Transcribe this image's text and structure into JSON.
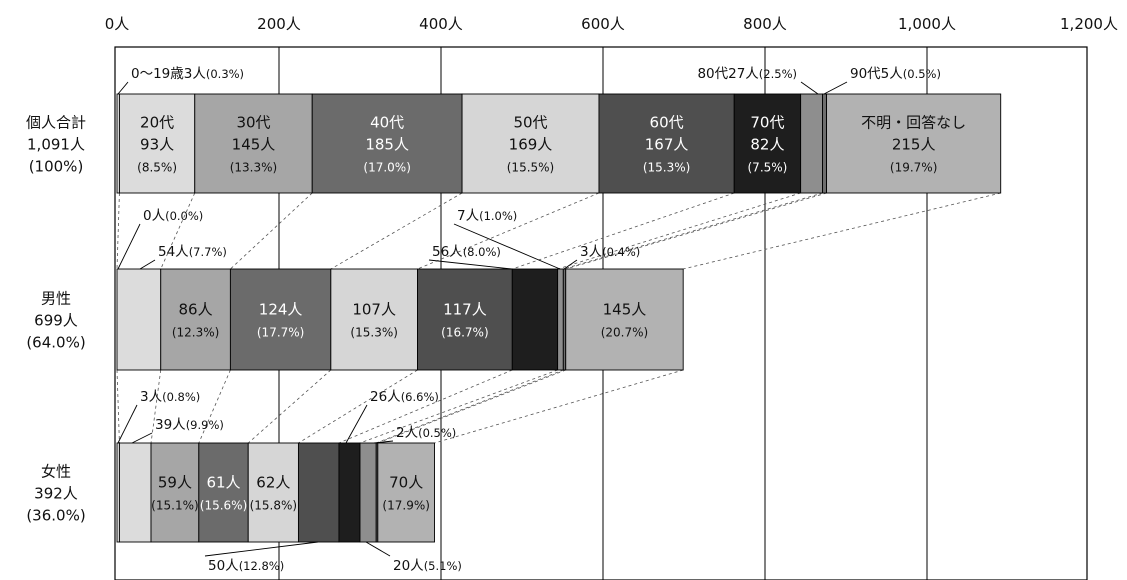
{
  "chart_data": {
    "type": "bar",
    "orientation": "horizontal",
    "stacked": true,
    "xlim": [
      0,
      1200
    ],
    "xticks": [
      0,
      200,
      400,
      600,
      800,
      1000,
      1200
    ],
    "xtick_labels": [
      "0人",
      "200人",
      "400人",
      "600人",
      "800人",
      "1,000人",
      "1,200人"
    ],
    "categories": [
      {
        "key": "total",
        "label_lines": [
          "個人合計",
          "1,091人",
          "(100%)"
        ]
      },
      {
        "key": "male",
        "label_lines": [
          "男性",
          "699人",
          "(64.0%)"
        ]
      },
      {
        "key": "female",
        "label_lines": [
          "女性",
          "392人",
          "(36.0%)"
        ]
      }
    ],
    "series": [
      {
        "name": "0～19歳",
        "color": "#dcdcdc",
        "values": [
          3,
          0,
          3
        ]
      },
      {
        "name": "20代",
        "color": "#dcdcdc",
        "values": [
          93,
          54,
          39
        ]
      },
      {
        "name": "30代",
        "color": "#a6a6a6",
        "values": [
          145,
          86,
          59
        ]
      },
      {
        "name": "40代",
        "color": "#6b6b6b",
        "values": [
          185,
          124,
          61
        ]
      },
      {
        "name": "50代",
        "color": "#d6d6d6",
        "values": [
          169,
          107,
          62
        ]
      },
      {
        "name": "60代",
        "color": "#4f4f4f",
        "values": [
          167,
          117,
          50
        ]
      },
      {
        "name": "70代",
        "color": "#1e1e1e",
        "values": [
          82,
          56,
          26
        ]
      },
      {
        "name": "80代",
        "color": "#8e8e8e",
        "values": [
          27,
          7,
          20
        ]
      },
      {
        "name": "90代",
        "color": "#6e6e6e",
        "values": [
          5,
          3,
          2
        ]
      },
      {
        "name": "不明・回答なし",
        "color": "#b2b2b2",
        "values": [
          215,
          145,
          70
        ]
      }
    ],
    "inner_labels": [
      {
        "row": 0,
        "seg": 1,
        "lines": [
          "20代",
          "93人",
          "(8.5%)"
        ],
        "text_color": "#111111"
      },
      {
        "row": 0,
        "seg": 2,
        "lines": [
          "30代",
          "145人",
          "(13.3%)"
        ],
        "text_color": "#111111"
      },
      {
        "row": 0,
        "seg": 3,
        "lines": [
          "40代",
          "185人",
          "(17.0%)"
        ],
        "text_color": "#ffffff"
      },
      {
        "row": 0,
        "seg": 4,
        "lines": [
          "50代",
          "169人",
          "(15.5%)"
        ],
        "text_color": "#111111"
      },
      {
        "row": 0,
        "seg": 5,
        "lines": [
          "60代",
          "167人",
          "(15.3%)"
        ],
        "text_color": "#ffffff"
      },
      {
        "row": 0,
        "seg": 6,
        "lines": [
          "70代",
          "82人",
          "(7.5%)"
        ],
        "text_color": "#ffffff"
      },
      {
        "row": 0,
        "seg": 9,
        "lines": [
          "不明・回答なし",
          "215人",
          "(19.7%)"
        ],
        "text_color": "#111111"
      },
      {
        "row": 1,
        "seg": 2,
        "lines": [
          "86人",
          "(12.3%)"
        ],
        "text_color": "#111111"
      },
      {
        "row": 1,
        "seg": 3,
        "lines": [
          "124人",
          "(17.7%)"
        ],
        "text_color": "#ffffff"
      },
      {
        "row": 1,
        "seg": 4,
        "lines": [
          "107人",
          "(15.3%)"
        ],
        "text_color": "#111111"
      },
      {
        "row": 1,
        "seg": 5,
        "lines": [
          "117人",
          "(16.7%)"
        ],
        "text_color": "#ffffff"
      },
      {
        "row": 1,
        "seg": 9,
        "lines": [
          "145人",
          "(20.7%)"
        ],
        "text_color": "#111111"
      },
      {
        "row": 2,
        "seg": 2,
        "lines": [
          "59人",
          "(15.1%)"
        ],
        "text_color": "#111111"
      },
      {
        "row": 2,
        "seg": 3,
        "lines": [
          "61人",
          "(15.6%)"
        ],
        "text_color": "#ffffff"
      },
      {
        "row": 2,
        "seg": 4,
        "lines": [
          "62人",
          "(15.8%)"
        ],
        "text_color": "#111111"
      },
      {
        "row": 2,
        "seg": 9,
        "lines": [
          "70人",
          "(17.9%)"
        ],
        "text_color": "#111111"
      }
    ],
    "callouts": [
      {
        "row": 0,
        "seg": 0,
        "text": "0～19歳3人",
        "pct": "(0.3%)"
      },
      {
        "row": 0,
        "seg": 7,
        "text": "80代27人",
        "pct": "(2.5%)"
      },
      {
        "row": 0,
        "seg": 8,
        "text": "90代5人",
        "pct": "(0.5%)"
      },
      {
        "row": 1,
        "seg": 0,
        "text": "0人",
        "pct": "(0.0%)"
      },
      {
        "row": 1,
        "seg": 1,
        "text": "54人",
        "pct": "(7.7%)"
      },
      {
        "row": 1,
        "seg": 6,
        "text": "56人",
        "pct": "(8.0%)"
      },
      {
        "row": 1,
        "seg": 7,
        "text": "7人",
        "pct": "(1.0%)"
      },
      {
        "row": 1,
        "seg": 8,
        "text": "3人",
        "pct": "(0.4%)"
      },
      {
        "row": 2,
        "seg": 0,
        "text": "3人",
        "pct": "(0.8%)"
      },
      {
        "row": 2,
        "seg": 1,
        "text": "39人",
        "pct": "(9.9%)"
      },
      {
        "row": 2,
        "seg": 6,
        "text": "26人",
        "pct": "(6.6%)"
      },
      {
        "row": 2,
        "seg": 8,
        "text": "2人",
        "pct": "(0.5%)"
      },
      {
        "row": 2,
        "seg": 5,
        "text": "50人",
        "pct": "(12.8%)"
      },
      {
        "row": 2,
        "seg": 7,
        "text": "20人",
        "pct": "(5.1%)"
      }
    ],
    "grid": true,
    "connector_lines": true
  }
}
